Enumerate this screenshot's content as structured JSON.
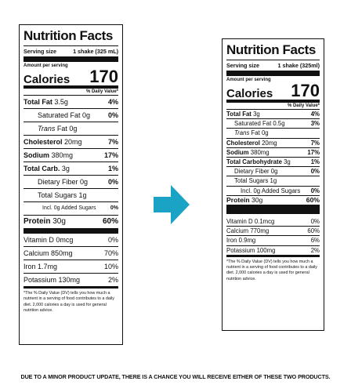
{
  "left": {
    "title": "Nutrition Facts",
    "serving_label": "Serving size",
    "serving_value": "1 shake (325 mL)",
    "amount_per_serving": "Amount per serving",
    "calories_label": "Calories",
    "calories_value": "170",
    "dv_header": "% Daily Value*",
    "rows": {
      "total_fat": {
        "name": "Total Fat",
        "amount": "3.5g",
        "dv": "4%"
      },
      "sat_fat": {
        "name": "Saturated Fat 0g",
        "dv": "0%"
      },
      "trans_fat": {
        "name": "Trans",
        "amount": "Fat 0g"
      },
      "cholesterol": {
        "name": "Cholesterol",
        "amount": "20mg",
        "dv": "7%"
      },
      "sodium": {
        "name": "Sodium",
        "amount": "380mg",
        "dv": "17%"
      },
      "total_carb": {
        "name": "Total Carb.",
        "amount": "3g",
        "dv": "1%"
      },
      "fiber": {
        "name": "Dietary Fiber 0g",
        "dv": "0%"
      },
      "sugars": {
        "name": "Total Sugars 1g"
      },
      "added_sugars": {
        "name": "Incl. 0g Added Sugars",
        "dv": "0%"
      },
      "protein": {
        "name": "Protein",
        "amount": "30g",
        "dv": "60%"
      },
      "vitd": {
        "name": "Vitamin D 0mcg",
        "dv": "0%"
      },
      "calcium": {
        "name": "Calcium 850mg",
        "dv": "70%"
      },
      "iron": {
        "name": "Iron 1.7mg",
        "dv": "10%"
      },
      "potassium": {
        "name": "Potassium 130mg",
        "dv": "2%"
      }
    },
    "footnote": "*The % Daily Value (DV) tells you how much a nutrient in a serving of food contributes to a daily diet. 2,000 calories a day is used for general nutrition advice."
  },
  "right": {
    "title": "Nutrition Facts",
    "serving_label": "Serving size",
    "serving_value": "1 shake (325ml)",
    "amount_per_serving": "Amount per serving",
    "calories_label": "Calories",
    "calories_value": "170",
    "dv_header": "% Daily Value*",
    "rows": {
      "total_fat": {
        "name": "Total Fat",
        "amount": "3g",
        "dv": "4%"
      },
      "sat_fat": {
        "name": "Saturated Fat 0.5g",
        "dv": "3%"
      },
      "trans_fat": {
        "name": "Trans",
        "amount": "Fat 0g"
      },
      "cholesterol": {
        "name": "Cholesterol",
        "amount": "20mg",
        "dv": "7%"
      },
      "sodium": {
        "name": "Sodium",
        "amount": "380mg",
        "dv": "17%"
      },
      "total_carb": {
        "name": "Total Carbohydrate",
        "amount": "3g",
        "dv": "1%"
      },
      "fiber": {
        "name": "Dietary Fiber 0g",
        "dv": "0%"
      },
      "sugars": {
        "name": "Total Sugars 1g"
      },
      "added_sugars": {
        "name": "Incl. 0g Added Sugars",
        "dv": "0%"
      },
      "protein": {
        "name": "Protein",
        "amount": "30g",
        "dv": "60%"
      },
      "vitd": {
        "name": "Vitamin D 0.1mcg",
        "dv": "0%"
      },
      "calcium": {
        "name": "Calcium 770mg",
        "dv": "60%"
      },
      "iron": {
        "name": "Iron 0.9mg",
        "dv": "6%"
      },
      "potassium": {
        "name": "Potassium 100mg",
        "dv": "2%"
      }
    },
    "footnote": "*The % Daily Value (DV) tells you how much a nutrient in a serving of food contributes to a daily diet. 2,000 calories a day is used for general nutrition advice."
  },
  "arrow_color": "#1aa3c4",
  "arrow_icon": "right-arrow-icon",
  "footer_note": "DUE TO A MINOR PRODUCT UPDATE, THERE IS A CHANCE YOU WILL RECEIVE EITHER OF THESE TWO PRODUCTS."
}
